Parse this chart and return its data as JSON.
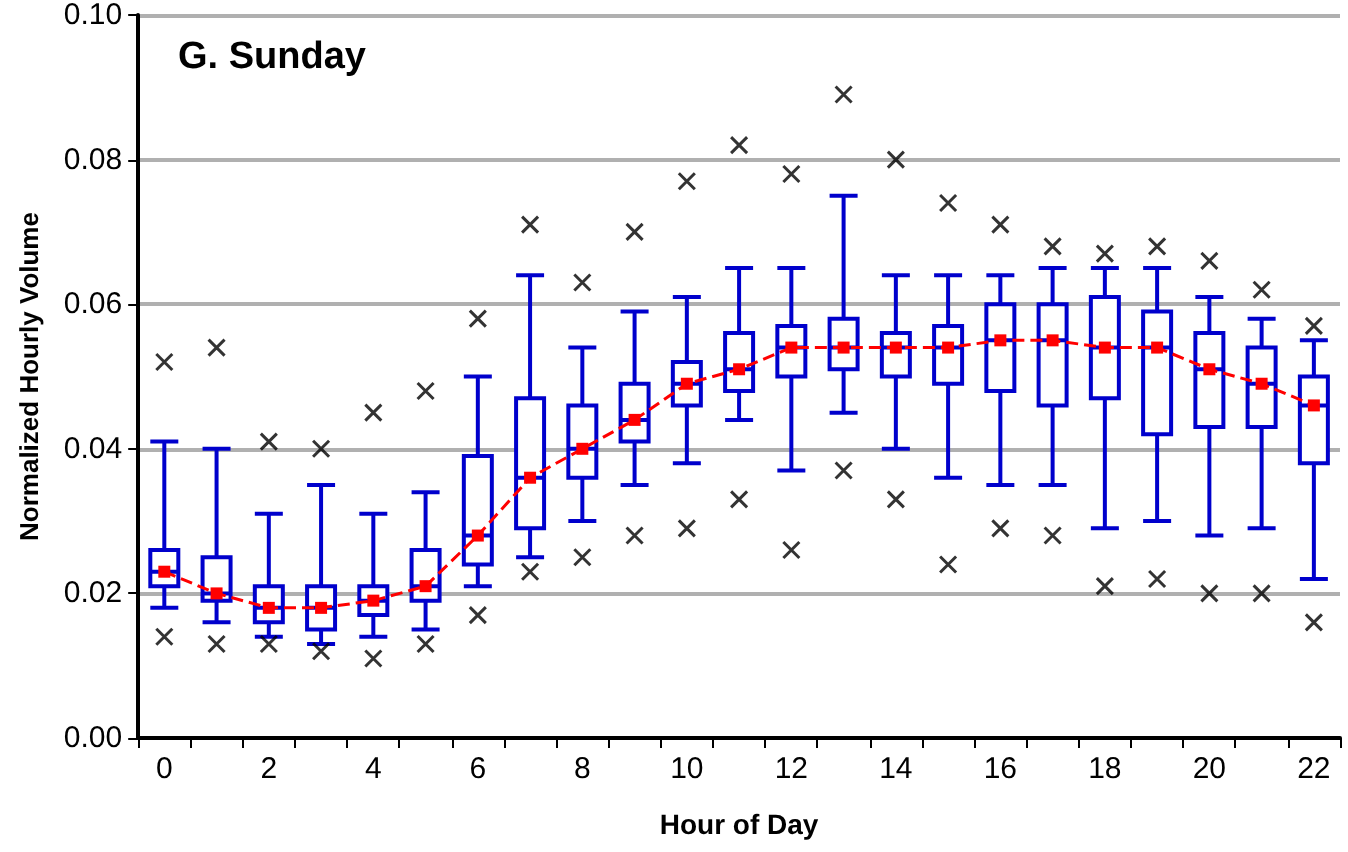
{
  "chart_data": {
    "type": "box",
    "title": "G. Sunday",
    "xlabel": "Hour of Day",
    "ylabel": "Normalized Hourly Volume",
    "categories": [
      "0",
      null,
      "2",
      null,
      "4",
      null,
      "6",
      null,
      "8",
      null,
      "10",
      null,
      "12",
      null,
      "14",
      null,
      "16",
      null,
      "18",
      null,
      "20",
      null,
      "22"
    ],
    "ylim": [
      0,
      0.1
    ],
    "yticks": [
      {
        "value": 0,
        "label": "0.00"
      },
      {
        "value": 0.02,
        "label": "0.02"
      },
      {
        "value": 0.04,
        "label": "0.04"
      },
      {
        "value": 0.06,
        "label": "0.06"
      },
      {
        "value": 0.08,
        "label": "0.08"
      },
      {
        "value": 0.1,
        "label": "0.10"
      }
    ],
    "grid": "y",
    "marker": "square",
    "line_style": "dashed",
    "series": [
      {
        "color": "#0000cc",
        "boxes": [
          {
            "low": 0.018,
            "q1": 0.021,
            "median": 0.023,
            "q3": 0.026,
            "high": 0.041,
            "outliers": [
              0.052,
              0.014
            ]
          },
          {
            "low": 0.016,
            "q1": 0.019,
            "median": 0.02,
            "q3": 0.025,
            "high": 0.04,
            "outliers": [
              0.054,
              0.013
            ]
          },
          {
            "low": 0.014,
            "q1": 0.016,
            "median": 0.018,
            "q3": 0.021,
            "high": 0.031,
            "outliers": [
              0.041,
              0.013
            ]
          },
          {
            "low": 0.013,
            "q1": 0.015,
            "median": 0.018,
            "q3": 0.021,
            "high": 0.035,
            "outliers": [
              0.04,
              0.012
            ]
          },
          {
            "low": 0.014,
            "q1": 0.017,
            "median": 0.019,
            "q3": 0.021,
            "high": 0.031,
            "outliers": [
              0.045,
              0.011
            ]
          },
          {
            "low": 0.015,
            "q1": 0.019,
            "median": 0.021,
            "q3": 0.026,
            "high": 0.034,
            "outliers": [
              0.048,
              0.013
            ]
          },
          {
            "low": 0.021,
            "q1": 0.024,
            "median": 0.028,
            "q3": 0.039,
            "high": 0.05,
            "outliers": [
              0.058,
              0.017
            ]
          },
          {
            "low": 0.025,
            "q1": 0.029,
            "median": 0.036,
            "q3": 0.047,
            "high": 0.064,
            "outliers": [
              0.071,
              0.023
            ]
          },
          {
            "low": 0.03,
            "q1": 0.036,
            "median": 0.04,
            "q3": 0.046,
            "high": 0.054,
            "outliers": [
              0.063,
              0.025
            ]
          },
          {
            "low": 0.035,
            "q1": 0.041,
            "median": 0.044,
            "q3": 0.049,
            "high": 0.059,
            "outliers": [
              0.07,
              0.028
            ]
          },
          {
            "low": 0.038,
            "q1": 0.046,
            "median": 0.049,
            "q3": 0.052,
            "high": 0.061,
            "outliers": [
              0.077,
              0.029
            ]
          },
          {
            "low": 0.044,
            "q1": 0.048,
            "median": 0.051,
            "q3": 0.056,
            "high": 0.065,
            "outliers": [
              0.082,
              0.033
            ]
          },
          {
            "low": 0.037,
            "q1": 0.05,
            "median": 0.054,
            "q3": 0.057,
            "high": 0.065,
            "outliers": [
              0.078,
              0.026
            ]
          },
          {
            "low": 0.045,
            "q1": 0.051,
            "median": 0.054,
            "q3": 0.058,
            "high": 0.075,
            "outliers": [
              0.089,
              0.037
            ]
          },
          {
            "low": 0.04,
            "q1": 0.05,
            "median": 0.054,
            "q3": 0.056,
            "high": 0.064,
            "outliers": [
              0.08,
              0.033
            ]
          },
          {
            "low": 0.036,
            "q1": 0.049,
            "median": 0.054,
            "q3": 0.057,
            "high": 0.064,
            "outliers": [
              0.074,
              0.024
            ]
          },
          {
            "low": 0.035,
            "q1": 0.048,
            "median": 0.055,
            "q3": 0.06,
            "high": 0.064,
            "outliers": [
              0.071,
              0.029
            ]
          },
          {
            "low": 0.035,
            "q1": 0.046,
            "median": 0.055,
            "q3": 0.06,
            "high": 0.065,
            "outliers": [
              0.068,
              0.028
            ]
          },
          {
            "low": 0.029,
            "q1": 0.047,
            "median": 0.054,
            "q3": 0.061,
            "high": 0.065,
            "outliers": [
              0.067,
              0.021
            ]
          },
          {
            "low": 0.03,
            "q1": 0.042,
            "median": 0.054,
            "q3": 0.059,
            "high": 0.065,
            "outliers": [
              0.068,
              0.022
            ]
          },
          {
            "low": 0.028,
            "q1": 0.043,
            "median": 0.051,
            "q3": 0.056,
            "high": 0.061,
            "outliers": [
              0.066,
              0.02
            ]
          },
          {
            "low": 0.029,
            "q1": 0.043,
            "median": 0.049,
            "q3": 0.054,
            "high": 0.058,
            "outliers": [
              0.062,
              0.02
            ]
          },
          {
            "low": 0.022,
            "q1": 0.038,
            "median": 0.046,
            "q3": 0.05,
            "high": 0.055,
            "outliers": [
              0.057,
              0.016
            ]
          }
        ]
      },
      {
        "type": "line",
        "color": "#ff0000",
        "values": [
          0.023,
          0.02,
          0.018,
          0.018,
          0.019,
          0.021,
          0.028,
          0.036,
          0.04,
          0.044,
          0.049,
          0.051,
          0.054,
          0.054,
          0.054,
          0.054,
          0.055,
          0.055,
          0.054,
          0.054,
          0.051,
          0.049,
          0.046
        ]
      }
    ]
  }
}
